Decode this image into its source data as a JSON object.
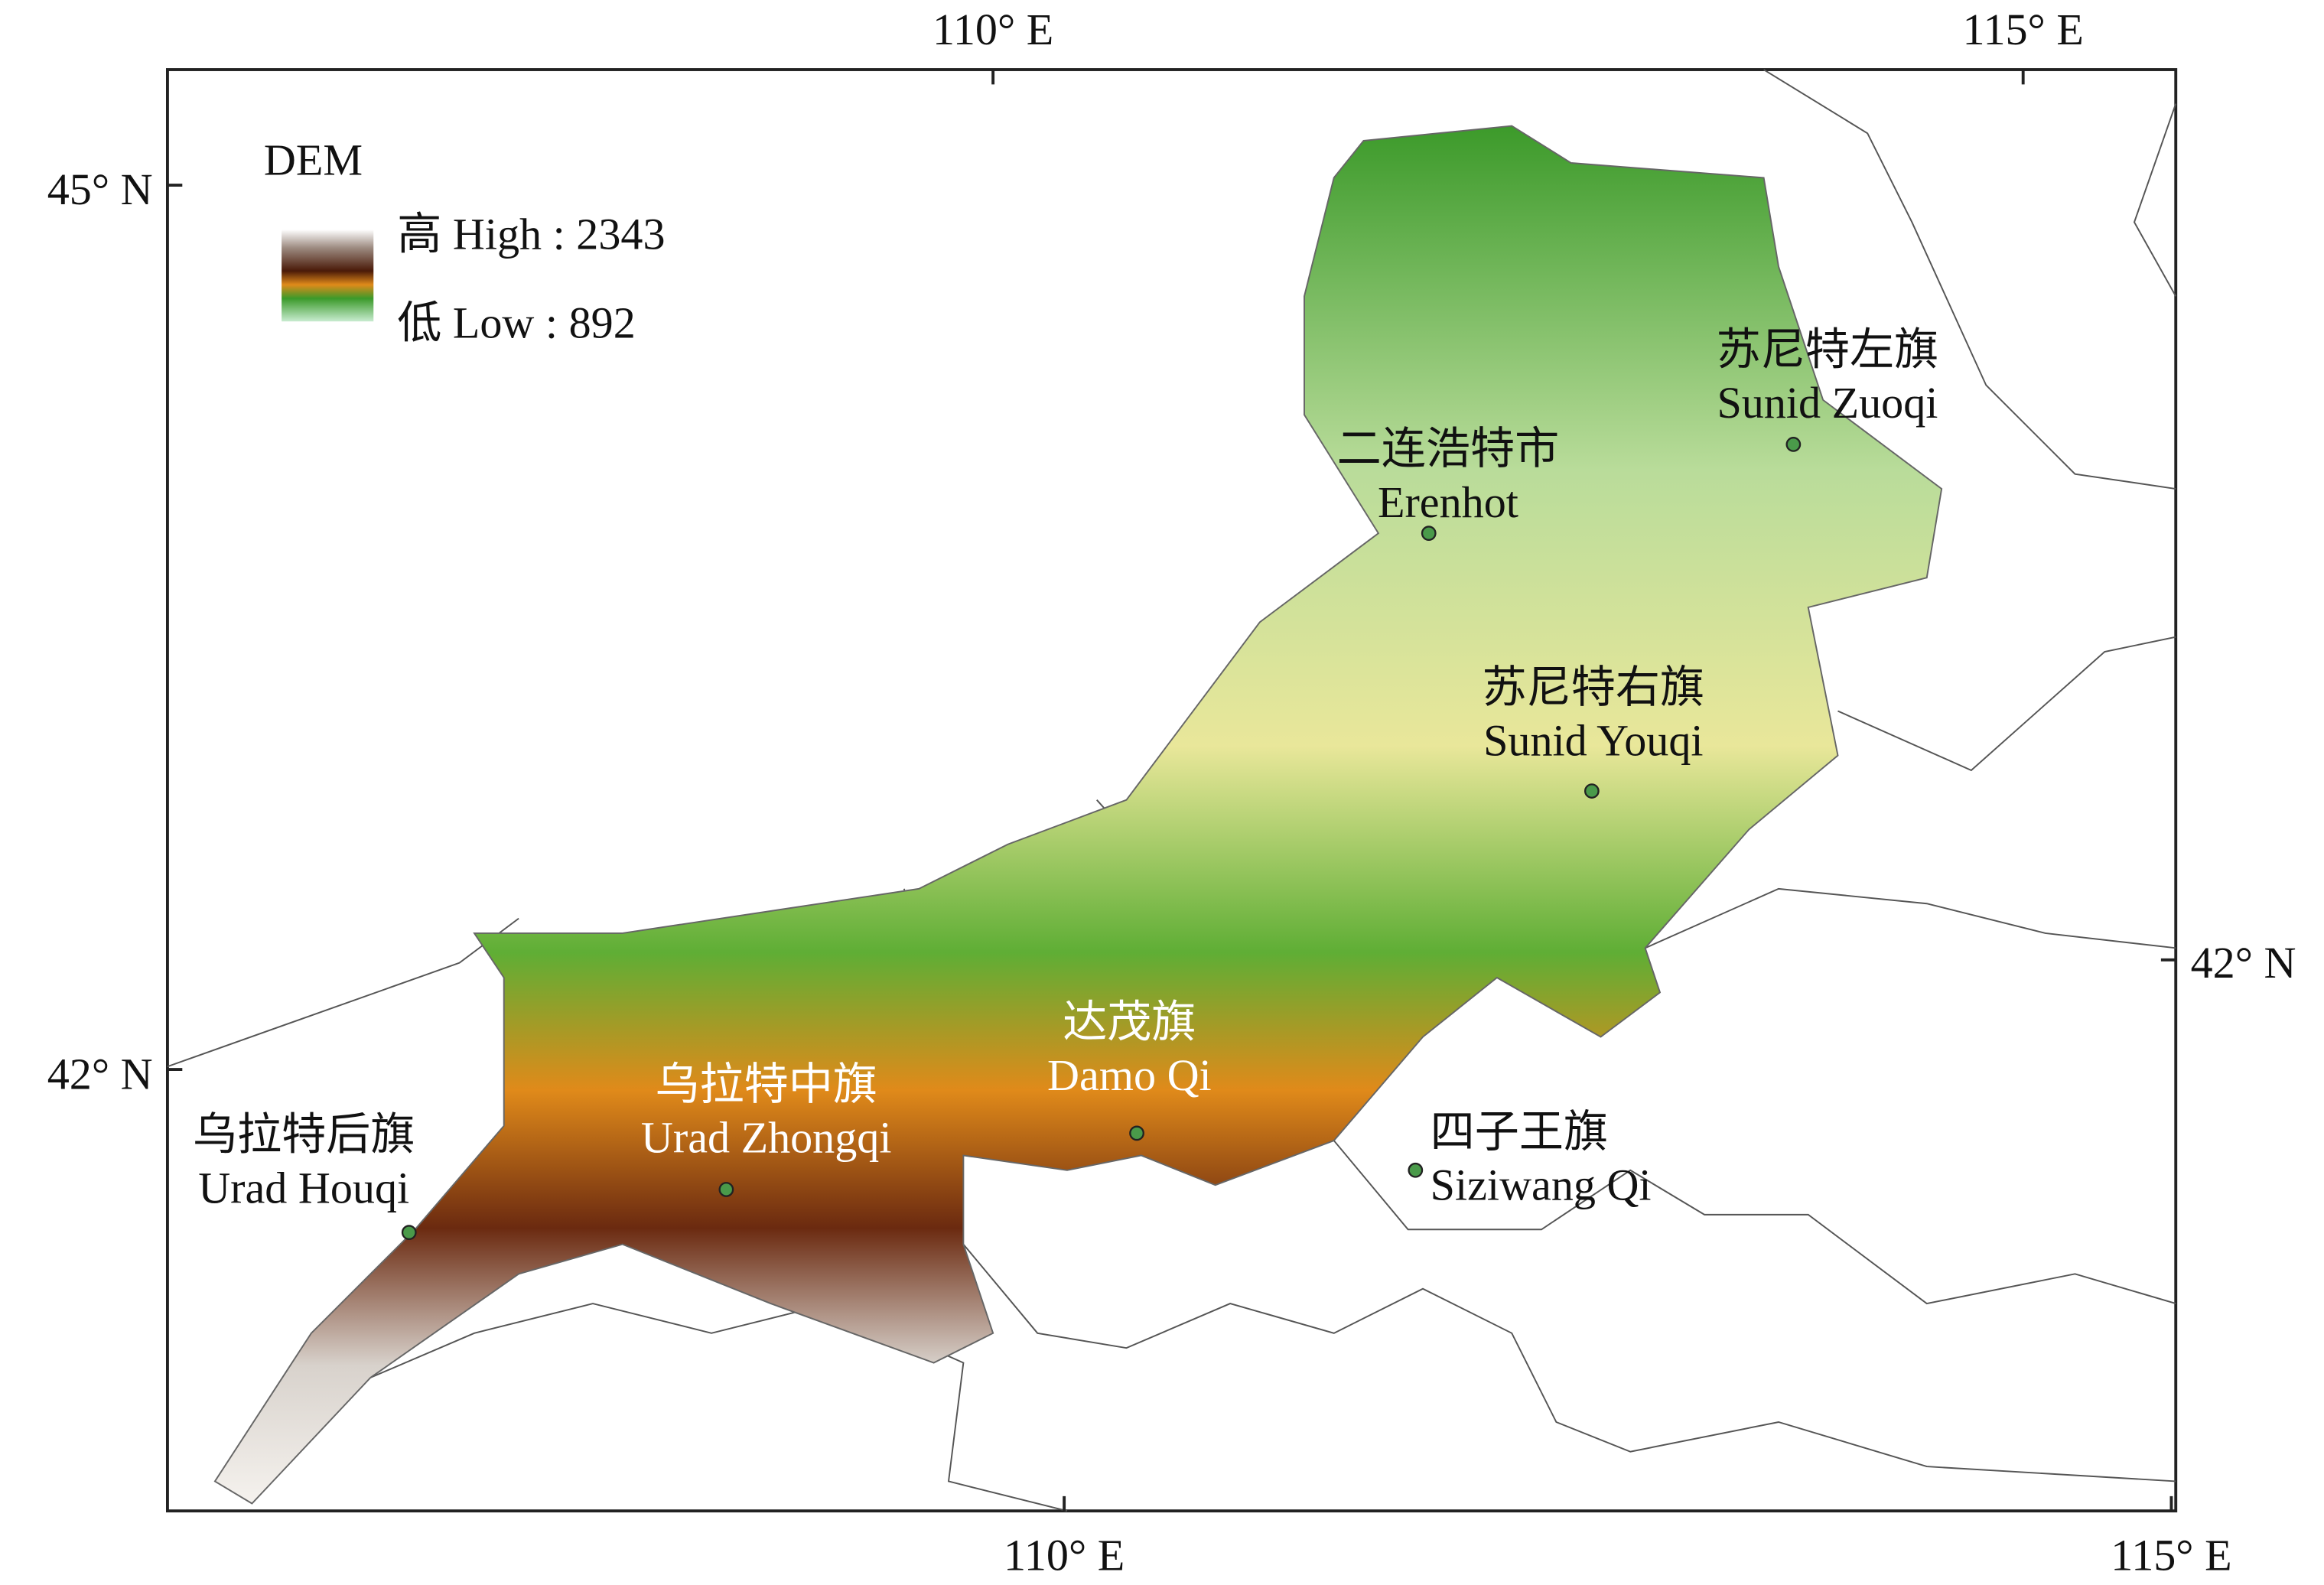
{
  "axes": {
    "top": [
      "110° E",
      "115° E"
    ],
    "bottom": [
      "110° E",
      "115° E"
    ],
    "left": [
      "45° N",
      "42° N"
    ],
    "right": [
      "42° N"
    ]
  },
  "legend": {
    "title": "DEM",
    "high": "高 High : 2343",
    "low": "低 Low : 892"
  },
  "places": [
    {
      "zh": "苏尼特左旗",
      "en": "Sunid Zuoqi"
    },
    {
      "zh": "二连浩特市",
      "en": "Erenhot"
    },
    {
      "zh": "苏尼特右旗",
      "en": "Sunid Youqi"
    },
    {
      "zh": "达茂旗",
      "en": "Damo Qi"
    },
    {
      "zh": "乌拉特中旗",
      "en": "Urad Zhongqi"
    },
    {
      "zh": "乌拉特后旗",
      "en": "Urad Houqi"
    },
    {
      "zh": "四子王旗",
      "en": "Siziwang Qi"
    }
  ]
}
